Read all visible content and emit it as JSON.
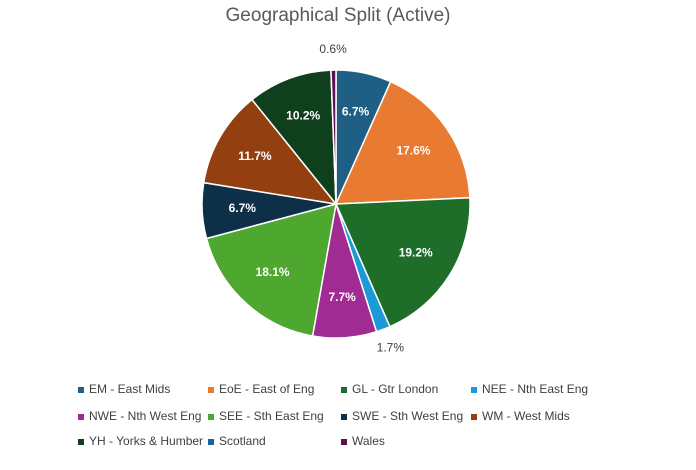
{
  "chart_data": {
    "type": "pie",
    "title": "Geographical Split (Active)",
    "categories": [
      "EM - East Mids",
      "EoE - East of Eng",
      "GL - Gtr London",
      "NEE - Nth East Eng",
      "NWE - Nth West Eng",
      "SEE - Sth East Eng",
      "SWE - Sth West Eng",
      "WM - West Mids",
      "YH - Yorks & Humber",
      "Scotland",
      "Wales"
    ],
    "values": [
      6.7,
      17.6,
      19.2,
      1.7,
      7.7,
      18.1,
      6.7,
      11.7,
      10.2,
      0,
      0.6
    ],
    "value_labels": [
      "6.7%",
      "17.6%",
      "19.2%",
      "1.7%",
      "7.7%",
      "18.1%",
      "6.7%",
      "11.7%",
      "10.2%",
      null,
      "0.6%"
    ],
    "colors": [
      "#1f5e85",
      "#e97a32",
      "#1e6e2a",
      "#1a9ad6",
      "#a02b93",
      "#4ea72e",
      "#0e2f48",
      "#943f10",
      "#0f3f1c",
      "#215f9a",
      "#5c1050"
    ],
    "legend": "bottom"
  }
}
